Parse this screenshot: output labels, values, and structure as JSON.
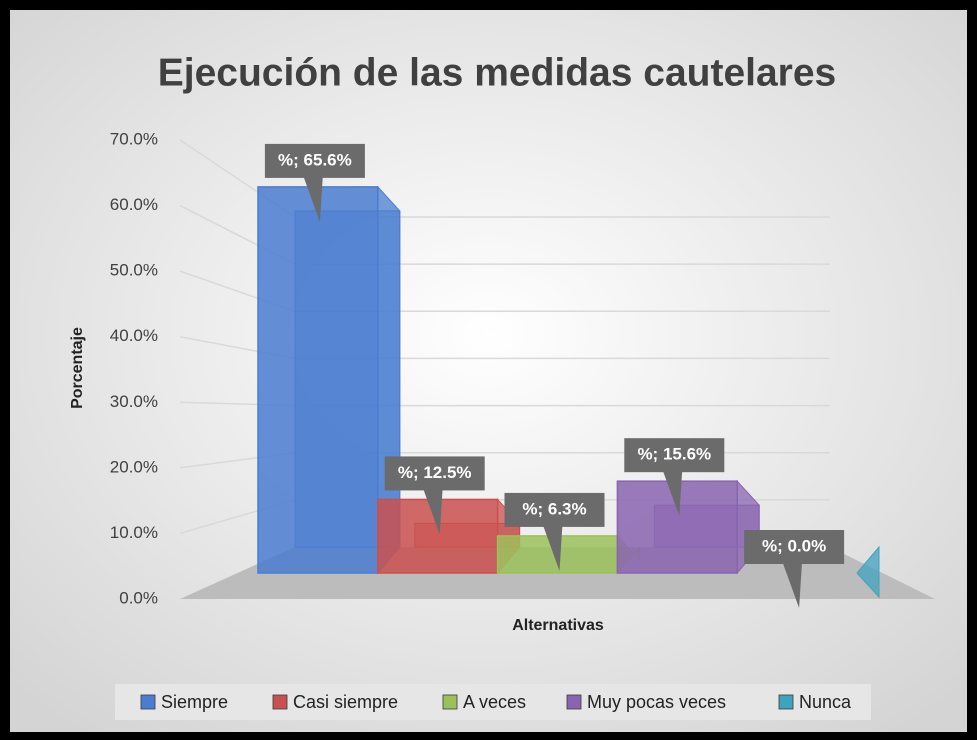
{
  "chart_data": {
    "type": "bar3d",
    "title": "Ejecución de las medidas cautelares",
    "ylabel": "Porcentaje",
    "xlabel": "Alternativas",
    "categories": [
      "Siempre",
      "Casi siempre",
      "A veces",
      "Muy pocas veces",
      "Nunca"
    ],
    "values": [
      65.6,
      12.5,
      6.3,
      15.6,
      0.0
    ],
    "value_labels": [
      "%; 65.6%",
      "%; 12.5%",
      "%; 6.3%",
      "%; 15.6%",
      "%; 0.0%"
    ],
    "colors": [
      "#4a7dd0",
      "#c9504f",
      "#9bc15a",
      "#8a64b0",
      "#3fa3bd"
    ],
    "ylim": [
      0,
      70
    ],
    "yticks": [
      {
        "value": 0,
        "label": "0.0%"
      },
      {
        "value": 10,
        "label": "10.0%"
      },
      {
        "value": 20,
        "label": "20.0%"
      },
      {
        "value": 30,
        "label": "30.0%"
      },
      {
        "value": 40,
        "label": "40.0%"
      },
      {
        "value": 50,
        "label": "50.0%"
      },
      {
        "value": 60,
        "label": "60.0%"
      },
      {
        "value": 70,
        "label": "70.0%"
      }
    ],
    "grid": true,
    "legend": "bottom"
  }
}
